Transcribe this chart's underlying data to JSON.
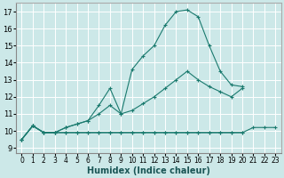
{
  "xlabel": "Humidex (Indice chaleur)",
  "background_color": "#cce8e8",
  "grid_color": "#b0d8d8",
  "line_color": "#1a7a6e",
  "xlim": [
    -0.5,
    23.5
  ],
  "ylim": [
    8.7,
    17.5
  ],
  "xticks": [
    0,
    1,
    2,
    3,
    4,
    5,
    6,
    7,
    8,
    9,
    10,
    11,
    12,
    13,
    14,
    15,
    16,
    17,
    18,
    19,
    20,
    21,
    22,
    23
  ],
  "yticks": [
    9,
    10,
    11,
    12,
    13,
    14,
    15,
    16,
    17
  ],
  "line1_x": [
    0,
    1,
    2,
    3,
    4,
    5,
    6,
    7,
    8,
    9,
    10,
    11,
    12,
    13,
    14,
    15,
    16,
    17,
    18,
    19,
    20,
    21,
    22,
    23
  ],
  "line1_y": [
    9.5,
    10.3,
    9.9,
    9.9,
    9.9,
    9.9,
    9.9,
    9.9,
    9.9,
    9.9,
    9.9,
    9.9,
    9.9,
    9.9,
    9.9,
    9.9,
    9.9,
    9.9,
    9.9,
    9.9,
    9.9,
    9.9,
    10.2,
    10.2
  ],
  "line2_x": [
    0,
    1,
    2,
    3,
    4,
    5,
    6,
    7,
    8,
    9,
    10,
    11,
    12,
    13,
    14,
    15,
    16,
    17,
    18,
    19,
    20,
    21,
    22,
    23
  ],
  "line2_y": [
    9.5,
    10.3,
    9.9,
    9.9,
    9.9,
    9.9,
    9.9,
    9.9,
    9.9,
    9.9,
    9.9,
    9.9,
    9.9,
    9.9,
    9.9,
    9.9,
    9.9,
    9.9,
    9.9,
    9.9,
    9.9,
    10.2,
    10.2,
    10.2
  ],
  "line3_x": [
    0,
    1,
    2,
    3,
    4,
    5,
    6,
    7,
    8,
    9,
    10,
    11,
    12,
    13,
    14,
    15,
    16,
    17,
    18,
    19,
    20,
    21,
    22,
    23
  ],
  "line3_y": [
    9.5,
    10.3,
    9.9,
    9.9,
    10.2,
    10.4,
    10.6,
    11.0,
    11.5,
    11.0,
    11.2,
    11.6,
    12.0,
    12.5,
    13.0,
    13.5,
    13.0,
    12.6,
    12.3,
    12.0,
    12.5,
    10.2,
    10.2,
    10.2
  ],
  "line4_x": [
    0,
    1,
    2,
    3,
    4,
    5,
    6,
    7,
    8,
    9,
    10,
    11,
    12,
    13,
    14,
    15,
    16,
    17,
    18,
    19,
    20,
    21,
    22,
    23
  ],
  "line4_y": [
    9.5,
    10.3,
    9.9,
    9.9,
    10.2,
    10.4,
    10.6,
    11.5,
    12.5,
    11.0,
    13.6,
    14.4,
    15.0,
    16.2,
    17.0,
    17.1,
    16.7,
    15.0,
    13.5,
    12.7,
    12.6,
    10.2,
    10.2,
    10.2
  ]
}
